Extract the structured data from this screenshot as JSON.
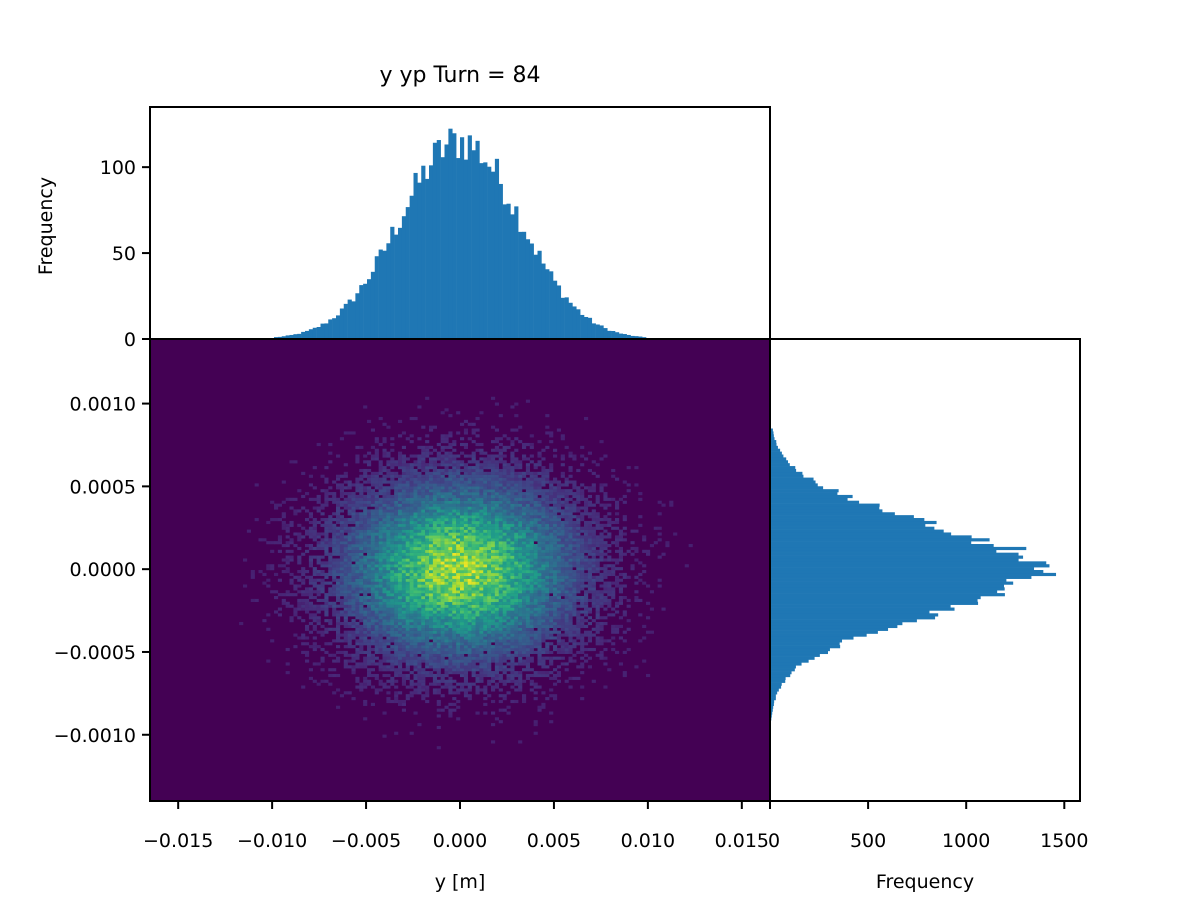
{
  "chart_data": [
    {
      "panel": "main-2d-histogram",
      "type": "heatmap",
      "title": "y yp Turn = 84",
      "xlabel": "y [m]",
      "ylabel": "",
      "xlim": [
        -0.0165,
        0.0165
      ],
      "ylim": [
        -0.0014,
        0.00139
      ],
      "xticks": [
        -0.015,
        -0.01,
        -0.005,
        0.0,
        0.005,
        0.01,
        0.015
      ],
      "xtick_labels": [
        "−0.015",
        "−0.010",
        "−0.005",
        "0.000",
        "0.005",
        "0.010",
        "0.015"
      ],
      "yticks": [
        -0.001,
        -0.0005,
        0.0,
        0.0005,
        0.001
      ],
      "ytick_labels": [
        "−0.0010",
        "−0.0005",
        "0.0000",
        "0.0005",
        "0.0010"
      ],
      "colormap": "viridis",
      "distribution": {
        "x_center": 0.0,
        "x_sigma": 0.0032,
        "y_center": 0.0,
        "y_sigma": 0.00028
      },
      "grid": false
    },
    {
      "panel": "top-histogram",
      "type": "bar",
      "ylabel": "Frequency",
      "ylim": [
        0,
        135
      ],
      "yticks": [
        0,
        50,
        100
      ],
      "ytick_labels": [
        "0",
        "50",
        "100"
      ],
      "bin_range": [
        -0.0165,
        0.0165
      ],
      "bins": 160,
      "peak_value": 128,
      "color": "#1f77b4",
      "distribution": {
        "center": 0.0,
        "sigma": 0.0032,
        "support": [
          -0.01,
          0.0098
        ]
      }
    },
    {
      "panel": "right-histogram",
      "type": "bar",
      "orientation": "horizontal",
      "xlabel": "Frequency",
      "xlim": [
        0,
        1580
      ],
      "xticks": [
        0,
        500,
        1000,
        1500
      ],
      "xtick_labels": [
        "0",
        "500",
        "1000",
        "1500"
      ],
      "bin_range": [
        -0.0014,
        0.00139
      ],
      "bins": 160,
      "peak_value": 1490,
      "color": "#1f77b4",
      "distribution": {
        "center": 0.0,
        "sigma": 0.00028,
        "support": [
          -0.00092,
          0.00085
        ]
      }
    }
  ],
  "colors": {
    "hist_bar": "#1f77b4",
    "heatmap_background": "#440154"
  }
}
